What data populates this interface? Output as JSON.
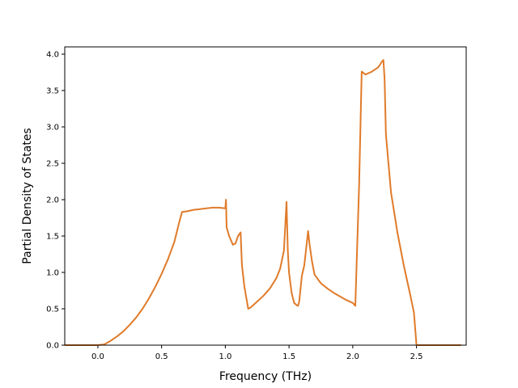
{
  "chart_data": {
    "type": "line",
    "title": "",
    "xlabel": "Frequency (THz)",
    "ylabel": "Partial Density of States",
    "xlim": [
      -0.26,
      2.89
    ],
    "ylim": [
      0.0,
      4.1
    ],
    "xticks": [
      0.0,
      0.5,
      1.0,
      1.5,
      2.0,
      2.5
    ],
    "xtick_labels": [
      "0.0",
      "0.5",
      "1.0",
      "1.5",
      "2.0",
      "2.5"
    ],
    "yticks": [
      0.0,
      0.5,
      1.0,
      1.5,
      2.0,
      2.5,
      3.0,
      3.5,
      4.0
    ],
    "ytick_labels": [
      "0.0",
      "0.5",
      "1.0",
      "1.5",
      "2.0",
      "2.5",
      "3.0",
      "3.5",
      "4.0"
    ],
    "grid": false,
    "legend": "none",
    "series": [
      {
        "color": "#e07b2a",
        "x": [
          -0.26,
          0.0,
          0.05,
          0.1,
          0.15,
          0.2,
          0.25,
          0.3,
          0.35,
          0.4,
          0.45,
          0.5,
          0.55,
          0.6,
          0.64,
          0.66,
          0.7,
          0.75,
          0.8,
          0.85,
          0.9,
          0.95,
          1.0,
          1.005,
          1.01,
          1.03,
          1.06,
          1.08,
          1.1,
          1.12,
          1.13,
          1.15,
          1.18,
          1.2,
          1.25,
          1.3,
          1.35,
          1.4,
          1.43,
          1.46,
          1.48,
          1.49,
          1.5,
          1.52,
          1.54,
          1.56,
          1.57,
          1.58,
          1.6,
          1.62,
          1.65,
          1.66,
          1.68,
          1.7,
          1.75,
          1.8,
          1.85,
          1.9,
          1.95,
          2.0,
          2.02,
          2.05,
          2.07,
          2.1,
          2.15,
          2.2,
          2.23,
          2.24,
          2.25,
          2.26,
          2.3,
          2.35,
          2.4,
          2.45,
          2.48,
          2.5,
          2.55,
          2.6,
          2.65,
          2.7,
          2.75,
          2.8,
          2.85
        ],
        "y": [
          0.0,
          0.0,
          0.01,
          0.06,
          0.12,
          0.19,
          0.28,
          0.38,
          0.5,
          0.64,
          0.8,
          0.98,
          1.18,
          1.42,
          1.7,
          1.83,
          1.84,
          1.86,
          1.87,
          1.88,
          1.89,
          1.89,
          1.88,
          2.0,
          1.62,
          1.5,
          1.38,
          1.4,
          1.5,
          1.55,
          1.1,
          0.8,
          0.5,
          0.52,
          0.6,
          0.68,
          0.78,
          0.92,
          1.05,
          1.3,
          1.97,
          1.3,
          1.0,
          0.72,
          0.58,
          0.55,
          0.54,
          0.6,
          0.95,
          1.1,
          1.57,
          1.4,
          1.15,
          0.97,
          0.85,
          0.78,
          0.72,
          0.67,
          0.62,
          0.58,
          0.54,
          2.2,
          3.76,
          3.72,
          3.76,
          3.82,
          3.9,
          3.92,
          3.65,
          2.9,
          2.1,
          1.55,
          1.1,
          0.7,
          0.45,
          0.0,
          0.0,
          0.0,
          0.0,
          0.0,
          0.0,
          0.0,
          0.0
        ]
      }
    ]
  }
}
